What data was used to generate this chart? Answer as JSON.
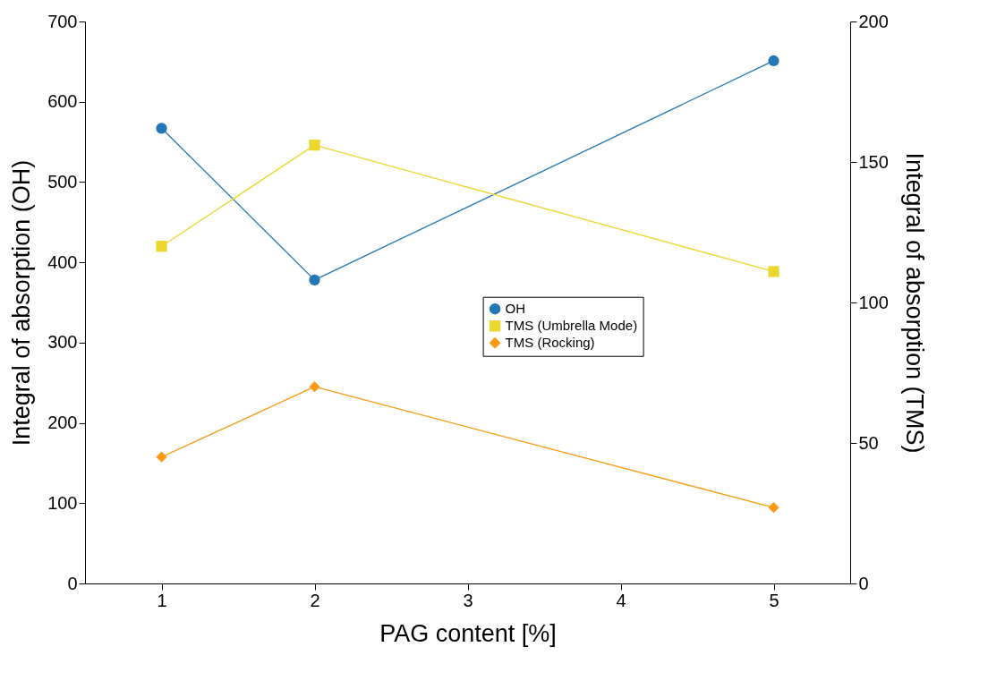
{
  "chart_data": {
    "type": "line",
    "xlabel": "PAG content [%]",
    "ylabel": "Integral of absorption (OH)",
    "y2label": "Integral of absorption (TMS)",
    "x": [
      1,
      2,
      5
    ],
    "xlim": [
      0.5,
      5.5
    ],
    "xticks": [
      1,
      2,
      3,
      4,
      5
    ],
    "ylim": [
      0,
      700
    ],
    "yticks": [
      0,
      100,
      200,
      300,
      400,
      500,
      600,
      700
    ],
    "y2lim": [
      0,
      200
    ],
    "y2ticks": [
      0,
      50,
      100,
      150,
      200
    ],
    "grid": false,
    "legend": "center right",
    "line_style": "solid",
    "series": [
      {
        "name": "OH",
        "color": "#2277b4",
        "marker": "circle",
        "values": [
          567,
          378,
          651
        ]
      },
      {
        "name": "TMS (Umbrella Mode)",
        "color": "#ecd630",
        "marker": "square",
        "axis": "y2",
        "values": [
          120,
          156,
          111
        ]
      },
      {
        "name": "TMS (Rocking)",
        "color": "#fb9a14",
        "marker": "diamond",
        "axis": "y2",
        "values": [
          45,
          70,
          27
        ]
      }
    ]
  }
}
